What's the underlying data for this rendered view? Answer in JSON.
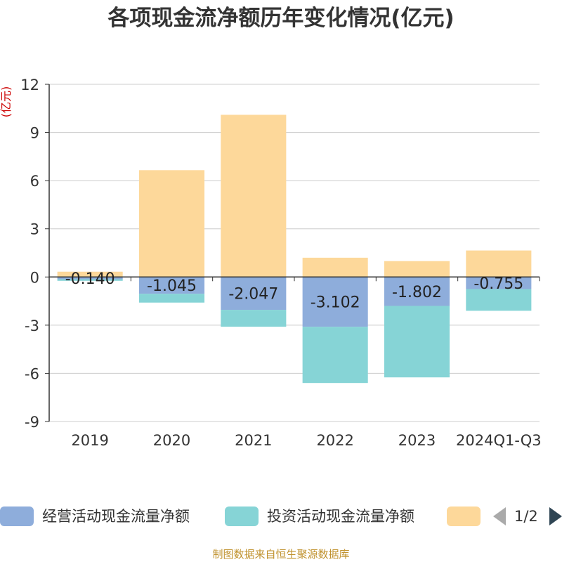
{
  "chart_data": {
    "type": "bar",
    "stacked": true,
    "title": "各项现金流净额历年变化情况(亿元)",
    "ylabel": "(亿元)",
    "xlabel": "",
    "categories": [
      "2019",
      "2020",
      "2021",
      "2022",
      "2023",
      "2024Q1-Q3"
    ],
    "ylim": [
      -9,
      12
    ],
    "yticks": [
      12,
      9,
      6,
      3,
      0,
      -3,
      -6,
      -9
    ],
    "grid": true,
    "series": [
      {
        "name": "经营活动现金流量净额",
        "color": "#8eaddb",
        "values": [
          -0.14,
          -1.045,
          -2.047,
          -3.102,
          -1.802,
          -0.755
        ],
        "labels": [
          "-0.140",
          "-1.045",
          "-2.047",
          "-3.102",
          "-1.802",
          "-0.755"
        ]
      },
      {
        "name": "投资活动现金流量净额",
        "color": "#86d4d6",
        "values": [
          -0.1,
          -0.55,
          -1.05,
          -3.5,
          -4.45,
          -1.35
        ]
      },
      {
        "name": "",
        "color": "#fdd89a",
        "values": [
          0.33,
          6.65,
          10.1,
          1.2,
          0.99,
          1.65
        ]
      }
    ]
  },
  "legend": {
    "items": [
      {
        "label": "经营活动现金流量净额",
        "color": "#8eaddb"
      },
      {
        "label": "投资活动现金流量净额",
        "color": "#86d4d6"
      },
      {
        "label": "",
        "color": "#fdd89a"
      }
    ],
    "page_text": "1/2"
  },
  "source": "制图数据来自恒生聚源数据库"
}
